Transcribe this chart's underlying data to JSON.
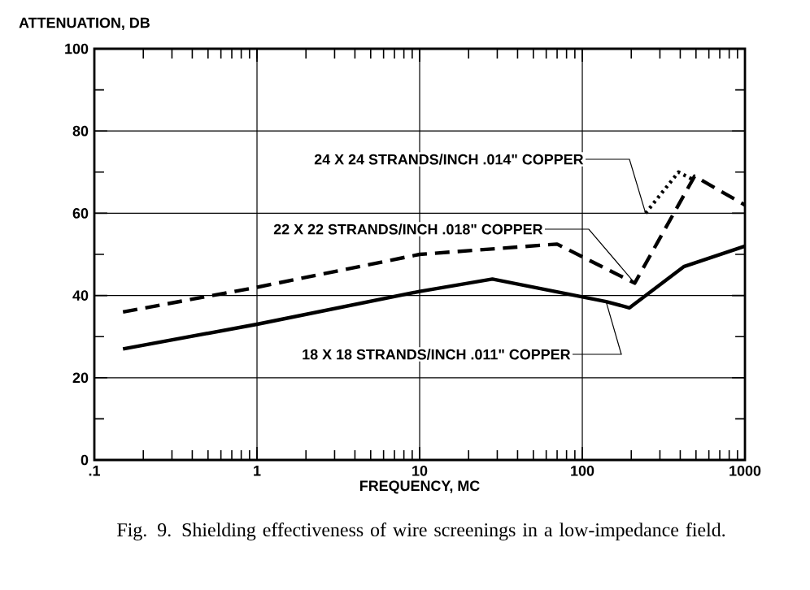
{
  "chart_data": {
    "type": "line",
    "xlabel": "FREQUENCY, MC",
    "ylabel": "ATTENUATION, DB",
    "log": "x",
    "xlim": [
      0.1,
      1000
    ],
    "xticks": [
      {
        "value": 0.1,
        "label": ".1"
      },
      1,
      10,
      100,
      1000
    ],
    "ylim": [
      0,
      100
    ],
    "yticks": [
      0,
      20,
      40,
      60,
      80,
      100
    ],
    "grid": true,
    "legend": false,
    "series": [
      {
        "name": "24 X 24 STRANDS/INCH .014\" COPPER",
        "color": "#000000",
        "line_style": "dotted",
        "x": [
          245,
          390,
          490
        ],
        "values": [
          60,
          70,
          68
        ]
      },
      {
        "name": "22 X 22 STRANDS/INCH .018\" COPPER",
        "color": "#000000",
        "line_style": "dashed",
        "x": [
          0.15,
          1,
          10,
          70,
          210,
          490,
          1000
        ],
        "values": [
          36,
          42,
          50,
          52.5,
          43,
          69,
          62
        ]
      },
      {
        "name": "18 X 18 STRANDS/INCH .011\" COPPER",
        "color": "#000000",
        "line_style": "solid",
        "x": [
          0.15,
          1,
          10,
          28,
          140,
          195,
          420,
          1000
        ],
        "values": [
          27,
          33,
          41,
          44,
          38.5,
          37,
          47,
          52
        ]
      }
    ],
    "annotations": [
      "Fig. 9. Shielding effectiveness of wire screenings in a low-impedance field."
    ]
  }
}
